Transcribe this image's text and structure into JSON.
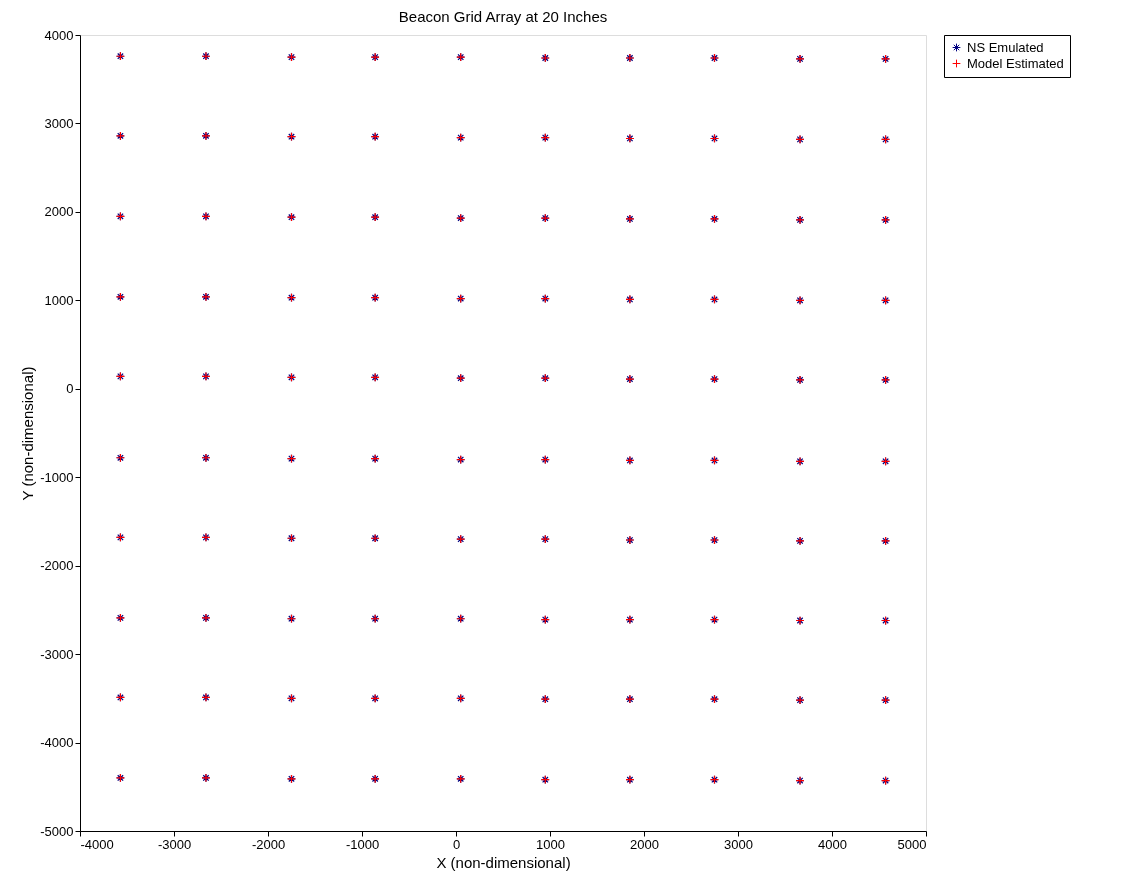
{
  "chart_data": {
    "type": "scatter",
    "title": "Beacon Grid Array at 20 Inches",
    "xlabel": "X (non-dimensional)",
    "ylabel": "Y (non-dimensional)",
    "xlim": [
      -4000,
      5000
    ],
    "ylim": [
      -5000,
      4000
    ],
    "xticks": [
      -4000,
      -3000,
      -2000,
      -1000,
      0,
      1000,
      2000,
      3000,
      4000,
      5000
    ],
    "yticks": [
      -5000,
      -4000,
      -3000,
      -2000,
      -1000,
      0,
      1000,
      2000,
      3000,
      4000
    ],
    "grid": false,
    "legend": "right",
    "series": [
      {
        "name": "NS Emulated",
        "color": "#00007f",
        "x": [
          -3570,
          -2660,
          -1750,
          -860,
          50,
          950,
          1850,
          2750,
          3660,
          4570,
          -3570,
          -2660,
          -1750,
          -860,
          50,
          950,
          1850,
          2750,
          3660,
          4570,
          -3570,
          -2660,
          -1750,
          -860,
          50,
          950,
          1850,
          2750,
          3660,
          4570,
          -3570,
          -2660,
          -1750,
          -860,
          50,
          950,
          1850,
          2750,
          3660,
          4570,
          -3570,
          -2660,
          -1750,
          -860,
          50,
          950,
          1850,
          2750,
          3660,
          4570,
          -3570,
          -2660,
          -1750,
          -860,
          50,
          950,
          1850,
          2750,
          3660,
          4570,
          -3570,
          -2660,
          -1750,
          -860,
          50,
          950,
          1850,
          2750,
          3660,
          4570,
          -3570,
          -2660,
          -1750,
          -860,
          50,
          950,
          1850,
          2750,
          3660,
          4570,
          -3570,
          -2660,
          -1750,
          -860,
          50,
          950,
          1850,
          2750,
          3660,
          4570,
          -3570,
          -2660,
          -1750,
          -860,
          50,
          950,
          1850,
          2750,
          3660,
          4570
        ],
        "values": [
          3760,
          3760,
          3750,
          3750,
          3750,
          3740,
          3740,
          3740,
          3730,
          3730,
          2860,
          2860,
          2850,
          2850,
          2840,
          2840,
          2830,
          2830,
          2820,
          2820,
          1950,
          1950,
          1940,
          1940,
          1930,
          1930,
          1920,
          1920,
          1910,
          1910,
          1040,
          1040,
          1030,
          1030,
          1020,
          1020,
          1010,
          1010,
          1000,
          1000,
          140,
          140,
          130,
          130,
          120,
          120,
          110,
          110,
          100,
          100,
          -780,
          -780,
          -790,
          -790,
          -800,
          -800,
          -810,
          -810,
          -820,
          -820,
          -1680,
          -1680,
          -1690,
          -1690,
          -1700,
          -1700,
          -1710,
          -1710,
          -1720,
          -1720,
          -2590,
          -2590,
          -2600,
          -2600,
          -2600,
          -2610,
          -2610,
          -2610,
          -2620,
          -2620,
          -3490,
          -3490,
          -3500,
          -3500,
          -3500,
          -3510,
          -3510,
          -3510,
          -3520,
          -3520,
          -4400,
          -4400,
          -4410,
          -4410,
          -4410,
          -4420,
          -4420,
          -4420,
          -4430,
          -4430
        ]
      },
      {
        "name": "Model Estimated",
        "color": "#ff0000",
        "marker": "cross",
        "x": [
          -3570,
          -2660,
          -1750,
          -860,
          50,
          950,
          1850,
          2750,
          3660,
          4570,
          -3570,
          -2660,
          -1750,
          -860,
          50,
          950,
          1850,
          2750,
          3660,
          4570,
          -3570,
          -2660,
          -1750,
          -860,
          50,
          950,
          1850,
          2750,
          3660,
          4570,
          -3570,
          -2660,
          -1750,
          -860,
          50,
          950,
          1850,
          2750,
          3660,
          4570,
          -3570,
          -2660,
          -1750,
          -860,
          50,
          950,
          1850,
          2750,
          3660,
          4570,
          -3570,
          -2660,
          -1750,
          -860,
          50,
          950,
          1850,
          2750,
          3660,
          4570,
          -3570,
          -2660,
          -1750,
          -860,
          50,
          950,
          1850,
          2750,
          3660,
          4570,
          -3570,
          -2660,
          -1750,
          -860,
          50,
          950,
          1850,
          2750,
          3660,
          4570,
          -3570,
          -2660,
          -1750,
          -860,
          50,
          950,
          1850,
          2750,
          3660,
          4570,
          -3570,
          -2660,
          -1750,
          -860,
          50,
          950,
          1850,
          2750,
          3660,
          4570
        ],
        "values": [
          3760,
          3760,
          3750,
          3750,
          3750,
          3740,
          3740,
          3740,
          3730,
          3730,
          2860,
          2860,
          2850,
          2850,
          2840,
          2840,
          2830,
          2830,
          2820,
          2820,
          1950,
          1950,
          1940,
          1940,
          1930,
          1930,
          1920,
          1920,
          1910,
          1910,
          1040,
          1040,
          1030,
          1030,
          1020,
          1020,
          1010,
          1010,
          1000,
          1000,
          140,
          140,
          130,
          130,
          120,
          120,
          110,
          110,
          100,
          100,
          -780,
          -780,
          -790,
          -790,
          -800,
          -800,
          -810,
          -810,
          -820,
          -820,
          -1680,
          -1680,
          -1690,
          -1690,
          -1700,
          -1700,
          -1710,
          -1710,
          -1720,
          -1720,
          -2590,
          -2590,
          -2600,
          -2600,
          -2600,
          -2610,
          -2610,
          -2610,
          -2620,
          -2620,
          -3490,
          -3490,
          -3500,
          -3500,
          -3500,
          -3510,
          -3510,
          -3510,
          -3520,
          -3520,
          -4400,
          -4400,
          -4410,
          -4410,
          -4410,
          -4420,
          -4420,
          -4420,
          -4430,
          -4430
        ]
      }
    ]
  }
}
